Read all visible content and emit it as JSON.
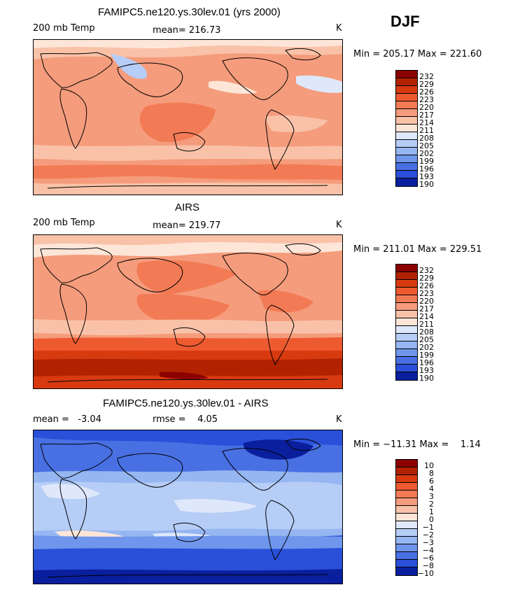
{
  "season": "DJF",
  "panels": [
    {
      "title": "FAMIPC5.ne120.ys.30lev.01 (yrs 2000)",
      "left_label": "200 mb Temp",
      "mean_text": "mean= 216.73",
      "units": "K",
      "minmax": "Min = 205.17 Max = 221.60",
      "levels": [
        "232",
        "229",
        "226",
        "223",
        "220",
        "217",
        "214",
        "211",
        "208",
        "205",
        "202",
        "199",
        "196",
        "193",
        "190"
      ],
      "colors": [
        "#8b0000",
        "#b22200",
        "#d83a10",
        "#ee5a30",
        "#f27b55",
        "#f59c7c",
        "#f9c2a8",
        "#fde6d8",
        "#dfe8fb",
        "#b6cdf6",
        "#96b6f2",
        "#6f96ec",
        "#4870e3",
        "#2a4fd8",
        "#0a1f9e"
      ]
    },
    {
      "title": "AIRS",
      "left_label": "200 mb Temp",
      "mean_text": "mean= 219.77",
      "units": "K",
      "minmax": "Min = 211.01 Max = 229.51",
      "levels": [
        "232",
        "229",
        "226",
        "223",
        "220",
        "217",
        "214",
        "211",
        "208",
        "205",
        "202",
        "199",
        "196",
        "193",
        "190"
      ],
      "colors": [
        "#8b0000",
        "#b22200",
        "#d83a10",
        "#ee5a30",
        "#f27b55",
        "#f59c7c",
        "#f9c2a8",
        "#fde6d8",
        "#dfe8fb",
        "#b6cdf6",
        "#96b6f2",
        "#6f96ec",
        "#4870e3",
        "#2a4fd8",
        "#0a1f9e"
      ]
    },
    {
      "title": "FAMIPC5.ne120.ys.30lev.01 - AIRS",
      "left_label": "mean =   -3.04",
      "mean_text": "rmse =    4.05",
      "units": "K",
      "minmax": "Min = −11.31 Max =    1.14",
      "levels": [
        "10",
        "8",
        "6",
        "4",
        "3",
        "2",
        "1",
        "0",
        "−1",
        "−2",
        "−3",
        "−4",
        "−6",
        "−8",
        "−10"
      ],
      "colors": [
        "#8b0000",
        "#b22200",
        "#d83a10",
        "#ee5a30",
        "#f27b55",
        "#f59c7c",
        "#f9c2a8",
        "#fde6d8",
        "#dfe8fb",
        "#b6cdf6",
        "#96b6f2",
        "#6f96ec",
        "#4870e3",
        "#2a4fd8",
        "#0a1f9e"
      ]
    }
  ]
}
